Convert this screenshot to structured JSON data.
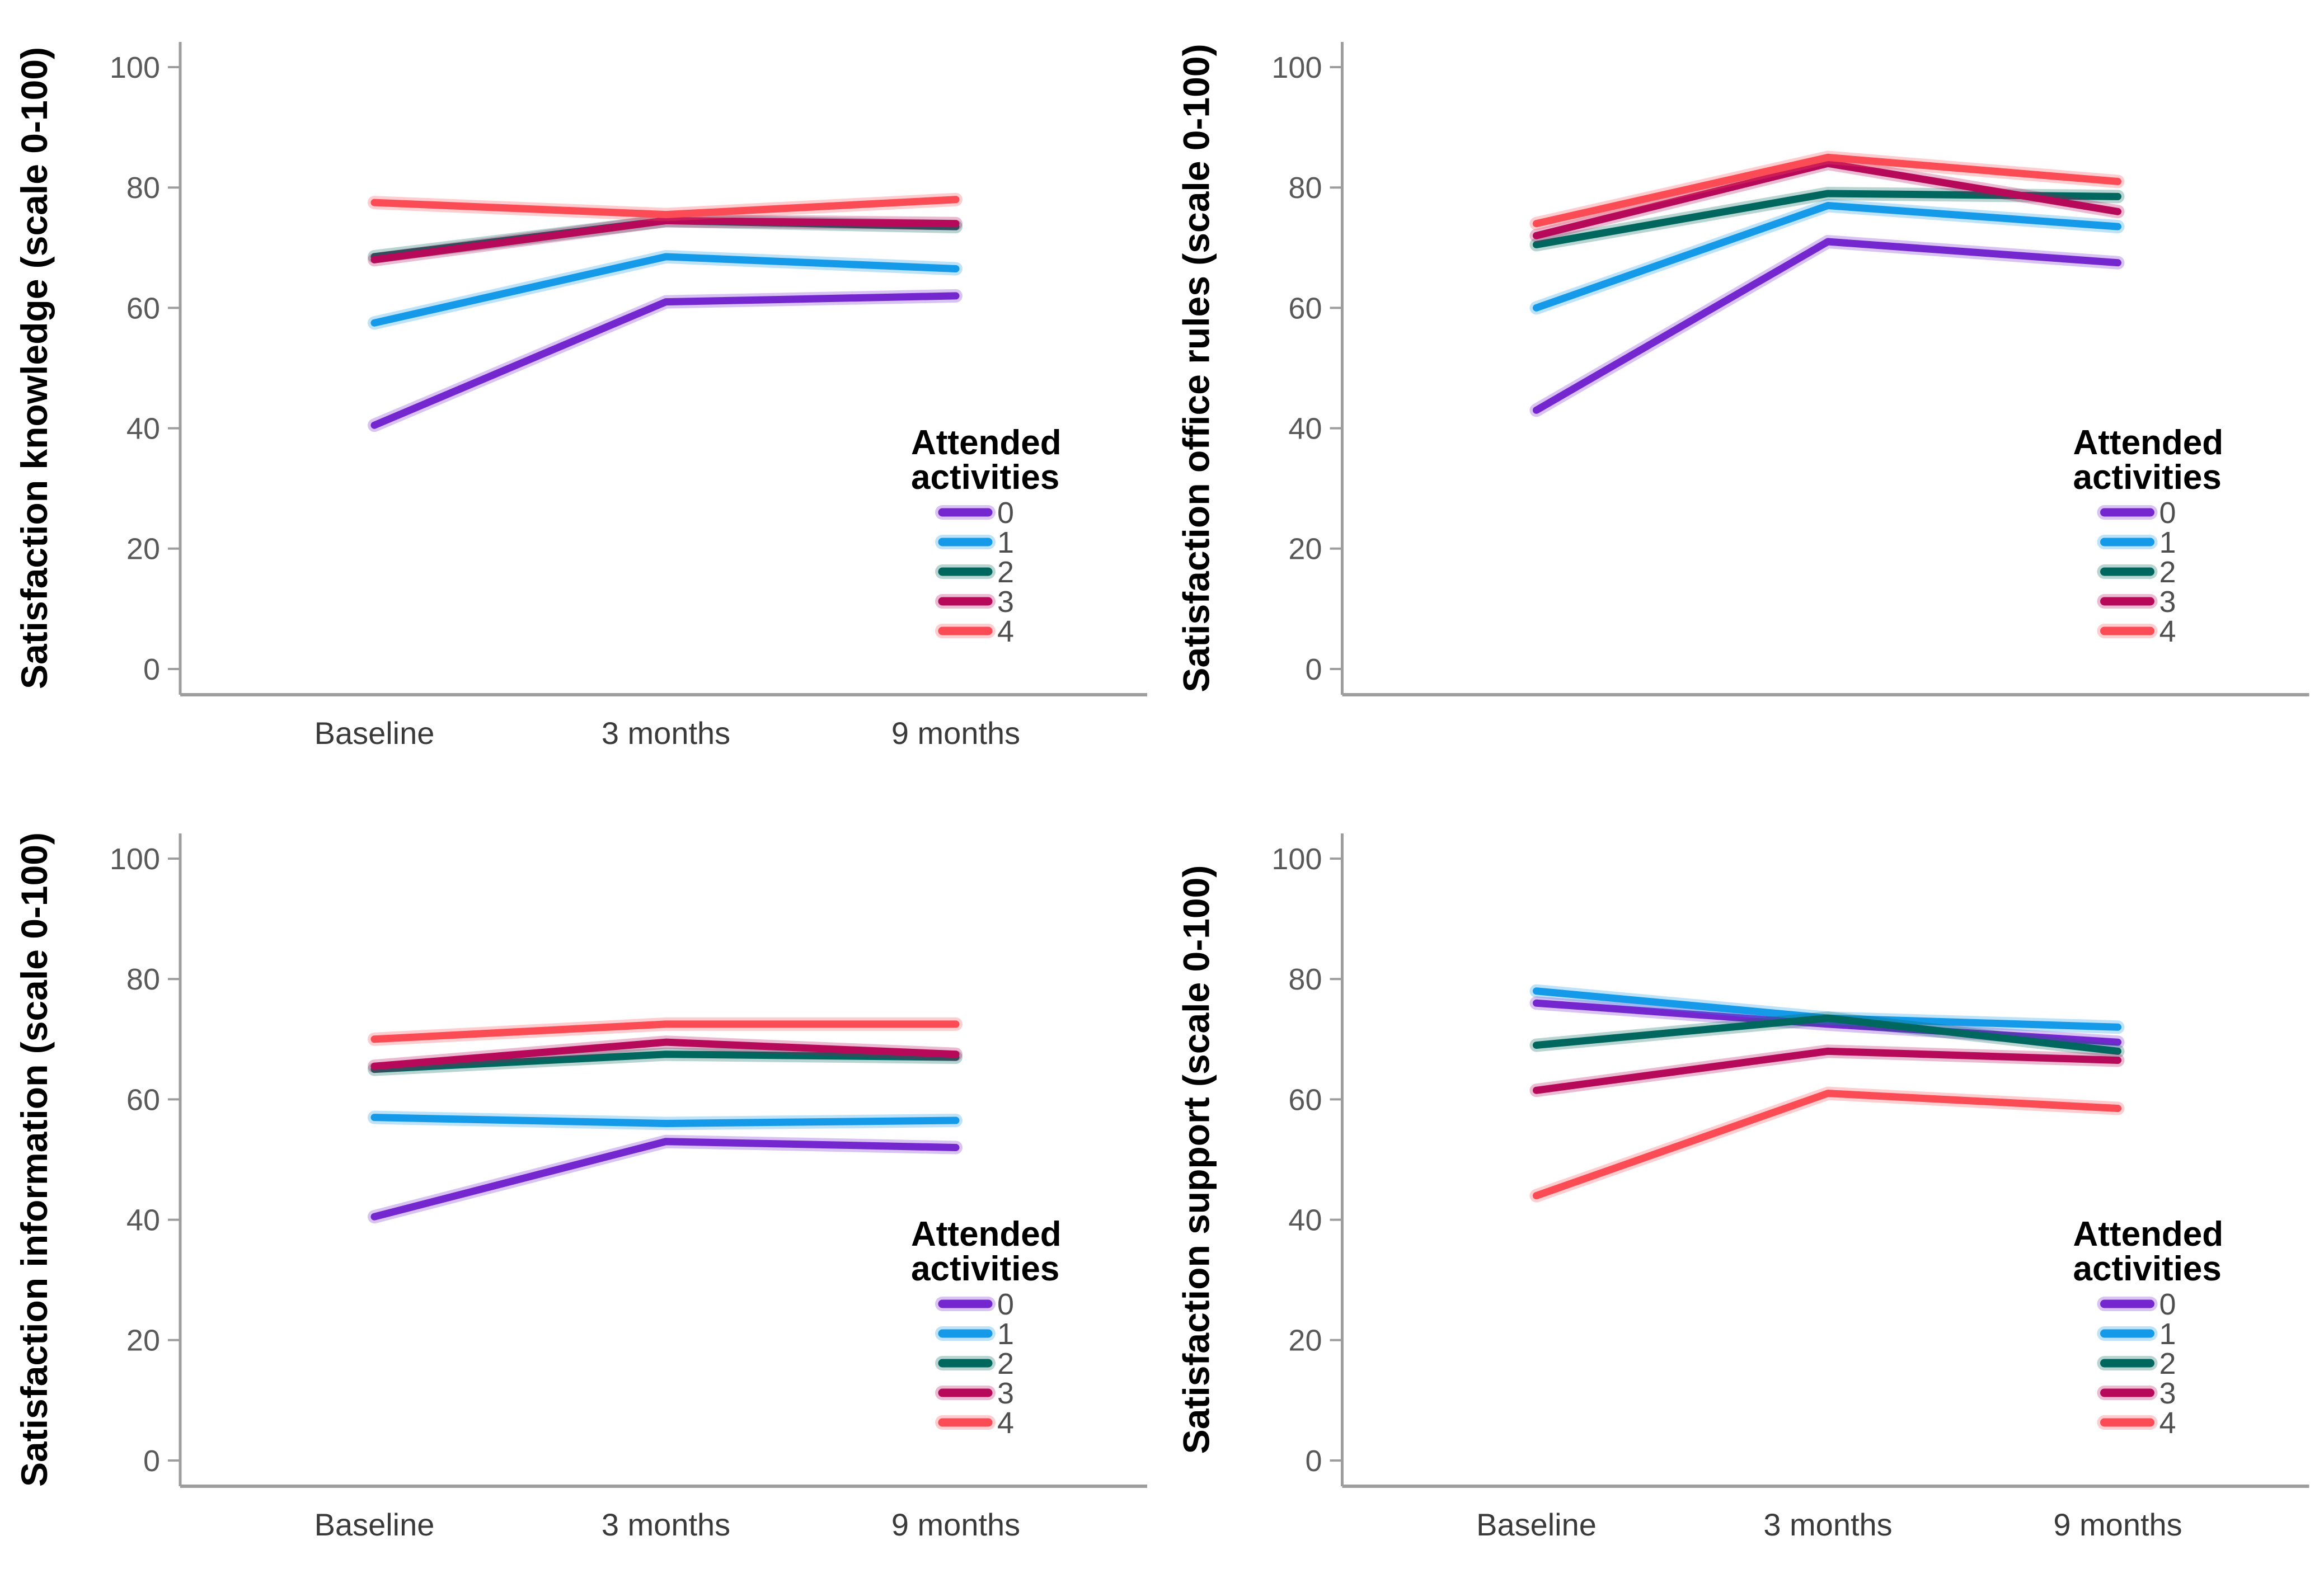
{
  "figure": {
    "background": "#ffffff",
    "axis_color": "#9d9d9d",
    "tick_label_color": "#595959",
    "x_label_color": "#3a3a3a",
    "legend_title": "Attended activities",
    "legend_title_lines": [
      "Attended",
      "activities"
    ],
    "x_axis_labels": [
      "Baseline",
      "3 months",
      "9 months"
    ],
    "series_colors": {
      "0": "#7527CF",
      "1": "#149AE8",
      "2": "#00675F",
      "3": "#B70959",
      "4": "#FB4B55"
    }
  },
  "chart_data": [
    {
      "type": "line",
      "key": "knowledge",
      "position": "top-left",
      "ylabel": "Satisfaction knowledge (scale 0-100)",
      "x": [
        "Baseline",
        "3 months",
        "9 months"
      ],
      "show_x_labels": true,
      "ylim": [
        0,
        100
      ],
      "yticks": [
        0,
        20,
        40,
        60,
        80,
        100
      ],
      "grid": false,
      "legend_position": "right-middle",
      "legend_title": "Attended activities",
      "series": [
        {
          "name": "0",
          "color": "#7527CF",
          "values": [
            40.5,
            61,
            62
          ]
        },
        {
          "name": "1",
          "color": "#149AE8",
          "values": [
            57.5,
            68.5,
            66.5
          ]
        },
        {
          "name": "2",
          "color": "#00675F",
          "values": [
            68.5,
            74.5,
            73.5
          ]
        },
        {
          "name": "3",
          "color": "#B70959",
          "values": [
            68,
            74.5,
            74
          ]
        },
        {
          "name": "4",
          "color": "#FB4B55",
          "values": [
            77.5,
            75.5,
            78
          ]
        }
      ]
    },
    {
      "type": "line",
      "key": "office-rules",
      "position": "top-right",
      "ylabel": "Satisfaction office rules (scale 0-100)",
      "x": [
        "Baseline",
        "3 months",
        "9 months"
      ],
      "show_x_labels": false,
      "ylim": [
        0,
        100
      ],
      "yticks": [
        0,
        20,
        40,
        60,
        80,
        100
      ],
      "grid": false,
      "legend_position": "right-middle",
      "legend_title": "Attended activities",
      "series": [
        {
          "name": "0",
          "color": "#7527CF",
          "values": [
            43,
            71,
            67.5
          ]
        },
        {
          "name": "1",
          "color": "#149AE8",
          "values": [
            60,
            77,
            73.5
          ]
        },
        {
          "name": "2",
          "color": "#00675F",
          "values": [
            70.5,
            79,
            78.5
          ]
        },
        {
          "name": "3",
          "color": "#B70959",
          "values": [
            72,
            84,
            76
          ]
        },
        {
          "name": "4",
          "color": "#FB4B55",
          "values": [
            74,
            85,
            81
          ]
        }
      ]
    },
    {
      "type": "line",
      "key": "information",
      "position": "bottom-left",
      "ylabel": "Satisfaction information (scale 0-100)",
      "x": [
        "Baseline",
        "3 months",
        "9 months"
      ],
      "show_x_labels": true,
      "ylim": [
        0,
        100
      ],
      "yticks": [
        0,
        20,
        40,
        60,
        80,
        100
      ],
      "grid": false,
      "legend_position": "right-middle",
      "legend_title": "Attended activities",
      "series": [
        {
          "name": "0",
          "color": "#7527CF",
          "values": [
            40.5,
            53,
            52
          ]
        },
        {
          "name": "1",
          "color": "#149AE8",
          "values": [
            57,
            56,
            56.5
          ]
        },
        {
          "name": "2",
          "color": "#00675F",
          "values": [
            65,
            67.5,
            67
          ]
        },
        {
          "name": "3",
          "color": "#B70959",
          "values": [
            65.5,
            69.5,
            67.5
          ]
        },
        {
          "name": "4",
          "color": "#FB4B55",
          "values": [
            70,
            72.5,
            72.5
          ]
        }
      ]
    },
    {
      "type": "line",
      "key": "support",
      "position": "bottom-right",
      "ylabel": "Satisfaction support (scale 0-100)",
      "x": [
        "Baseline",
        "3 months",
        "9 months"
      ],
      "show_x_labels": true,
      "ylim": [
        0,
        100
      ],
      "yticks": [
        0,
        20,
        40,
        60,
        80,
        100
      ],
      "grid": false,
      "legend_position": "right-middle",
      "legend_title": "Attended activities",
      "series": [
        {
          "name": "0",
          "color": "#7527CF",
          "values": [
            76,
            72.5,
            69.5
          ]
        },
        {
          "name": "1",
          "color": "#149AE8",
          "values": [
            78,
            73.5,
            72
          ]
        },
        {
          "name": "2",
          "color": "#00675F",
          "values": [
            69,
            73.5,
            68
          ]
        },
        {
          "name": "3",
          "color": "#B70959",
          "values": [
            61.5,
            68,
            66.5
          ]
        },
        {
          "name": "4",
          "color": "#FB4B55",
          "values": [
            44,
            61,
            58.5
          ]
        }
      ]
    }
  ]
}
